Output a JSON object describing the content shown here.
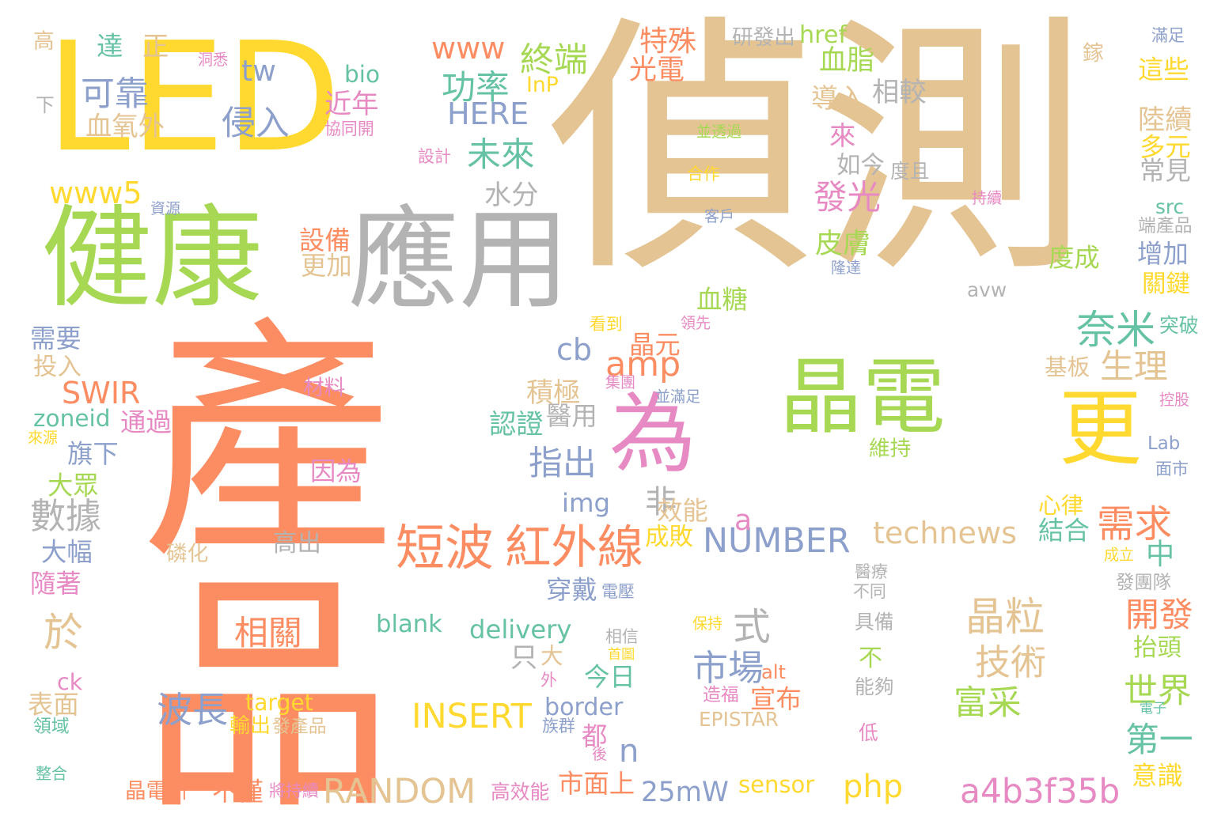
{
  "palette": {
    "orange": "#fc8d62",
    "tan": "#e5c494",
    "green": "#a6d854",
    "yellow": "#ffd92f",
    "gray": "#b3b3b3",
    "pink": "#e78ac3",
    "blue": "#8da0cb",
    "teal": "#66c2a5"
  },
  "words": [
    {
      "text": "產品",
      "color": "orange"
    },
    {
      "text": "偵測",
      "color": "tan"
    },
    {
      "text": "LED",
      "color": "yellow"
    },
    {
      "text": "健康",
      "color": "green"
    },
    {
      "text": "應用",
      "color": "gray"
    },
    {
      "text": "晶電",
      "color": "green"
    },
    {
      "text": "為",
      "color": "pink"
    },
    {
      "text": "更",
      "color": "yellow"
    },
    {
      "text": "短波",
      "color": "orange"
    },
    {
      "text": "紅外線",
      "color": "orange"
    },
    {
      "text": "技術",
      "color": "tan"
    },
    {
      "text": "晶粒",
      "color": "tan"
    },
    {
      "text": "需求",
      "color": "orange"
    },
    {
      "text": "奈米",
      "color": "teal"
    },
    {
      "text": "生理",
      "color": "tan"
    },
    {
      "text": "市場",
      "color": "blue"
    },
    {
      "text": "式",
      "color": "gray"
    },
    {
      "text": "相關",
      "color": "orange"
    },
    {
      "text": "波長",
      "color": "blue"
    },
    {
      "text": "富采",
      "color": "green"
    },
    {
      "text": "世界",
      "color": "green"
    },
    {
      "text": "開發",
      "color": "orange"
    },
    {
      "text": "第一",
      "color": "teal"
    },
    {
      "text": "INSERT",
      "color": "yellow"
    },
    {
      "text": "RANDOM",
      "color": "tan"
    },
    {
      "text": "NUMBER",
      "color": "blue"
    },
    {
      "text": "technews",
      "color": "tan"
    },
    {
      "text": "a4b3f35b",
      "color": "pink"
    },
    {
      "text": "delivery",
      "color": "teal"
    },
    {
      "text": "數據",
      "color": "gray"
    },
    {
      "text": "於",
      "color": "tan"
    },
    {
      "text": "指出",
      "color": "blue"
    },
    {
      "text": "amp",
      "color": "orange"
    },
    {
      "text": "功率",
      "color": "teal"
    },
    {
      "text": "未來",
      "color": "teal"
    },
    {
      "text": "終端",
      "color": "green"
    },
    {
      "text": "www",
      "color": "orange"
    },
    {
      "text": "HERE",
      "color": "blue"
    },
    {
      "text": "可靠",
      "color": "blue"
    },
    {
      "text": "侵入",
      "color": "blue"
    },
    {
      "text": "血氧外",
      "color": "tan"
    },
    {
      "text": "tw",
      "color": "blue"
    },
    {
      "text": "www5",
      "color": "yellow"
    },
    {
      "text": "SWIR",
      "color": "orange"
    },
    {
      "text": "zoneid",
      "color": "teal"
    },
    {
      "text": "cb",
      "color": "blue"
    },
    {
      "text": "php",
      "color": "yellow"
    },
    {
      "text": "border",
      "color": "blue"
    },
    {
      "text": "sensor",
      "color": "yellow"
    },
    {
      "text": "25mW",
      "color": "blue"
    },
    {
      "text": "blank",
      "color": "teal"
    },
    {
      "text": "target",
      "color": "yellow"
    },
    {
      "text": "img",
      "color": "blue"
    },
    {
      "text": "n",
      "color": "blue"
    },
    {
      "text": "a",
      "color": "pink"
    },
    {
      "text": "非",
      "color": "gray"
    },
    {
      "text": "發光",
      "color": "pink"
    },
    {
      "text": "皮膚",
      "color": "green"
    },
    {
      "text": "血脂",
      "color": "green"
    },
    {
      "text": "光電",
      "color": "orange"
    },
    {
      "text": "特殊",
      "color": "orange"
    },
    {
      "text": "研發出",
      "color": "gray"
    },
    {
      "text": "href",
      "color": "green"
    },
    {
      "text": "bio",
      "color": "teal"
    },
    {
      "text": "InP",
      "color": "yellow"
    },
    {
      "text": "近年",
      "color": "pink"
    },
    {
      "text": "達",
      "color": "teal"
    },
    {
      "text": "正",
      "color": "tan"
    },
    {
      "text": "高",
      "color": "tan"
    },
    {
      "text": "下",
      "color": "gray"
    },
    {
      "text": "洞悉",
      "color": "pink"
    },
    {
      "text": "協同開",
      "color": "pink"
    },
    {
      "text": "設計",
      "color": "pink"
    },
    {
      "text": "並透過",
      "color": "green"
    },
    {
      "text": "合作",
      "color": "yellow"
    },
    {
      "text": "客戶",
      "color": "blue"
    },
    {
      "text": "持續",
      "color": "pink"
    },
    {
      "text": "導入",
      "color": "tan"
    },
    {
      "text": "相較",
      "color": "gray"
    },
    {
      "text": "來",
      "color": "pink"
    },
    {
      "text": "如今",
      "color": "gray"
    },
    {
      "text": "度且",
      "color": "gray"
    },
    {
      "text": "水分",
      "color": "gray"
    },
    {
      "text": "設備",
      "color": "orange"
    },
    {
      "text": "更加",
      "color": "tan"
    },
    {
      "text": "資源",
      "color": "blue"
    },
    {
      "text": "血糖",
      "color": "green"
    },
    {
      "text": "晶元",
      "color": "orange"
    },
    {
      "text": "看到",
      "color": "yellow"
    },
    {
      "text": "領先",
      "color": "pink"
    },
    {
      "text": "積極",
      "color": "tan"
    },
    {
      "text": "醫用",
      "color": "gray"
    },
    {
      "text": "認證",
      "color": "teal"
    },
    {
      "text": "集團",
      "color": "pink"
    },
    {
      "text": "並滿足",
      "color": "blue"
    },
    {
      "text": "維持",
      "color": "green"
    },
    {
      "text": "因為",
      "color": "pink"
    },
    {
      "text": "材料",
      "color": "pink"
    },
    {
      "text": "通過",
      "color": "pink"
    },
    {
      "text": "旗下",
      "color": "blue"
    },
    {
      "text": "大眾",
      "color": "green"
    },
    {
      "text": "大幅",
      "color": "blue"
    },
    {
      "text": "隨著",
      "color": "pink"
    },
    {
      "text": "需要",
      "color": "blue"
    },
    {
      "text": "投入",
      "color": "tan"
    },
    {
      "text": "來源",
      "color": "yellow"
    },
    {
      "text": "磷化",
      "color": "tan"
    },
    {
      "text": "高出",
      "color": "gray"
    },
    {
      "text": "效能",
      "color": "tan"
    },
    {
      "text": "成敗",
      "color": "yellow"
    },
    {
      "text": "穿戴",
      "color": "blue"
    },
    {
      "text": "電壓",
      "color": "blue"
    },
    {
      "text": "相信",
      "color": "gray"
    },
    {
      "text": "首圖",
      "color": "yellow"
    },
    {
      "text": "只",
      "color": "gray"
    },
    {
      "text": "大",
      "color": "tan"
    },
    {
      "text": "外",
      "color": "pink"
    },
    {
      "text": "今日",
      "color": "teal"
    },
    {
      "text": "alt",
      "color": "orange"
    },
    {
      "text": "宣布",
      "color": "orange"
    },
    {
      "text": "保持",
      "color": "yellow"
    },
    {
      "text": "造福",
      "color": "pink"
    },
    {
      "text": "EPISTAR",
      "color": "tan"
    },
    {
      "text": "族群",
      "color": "blue"
    },
    {
      "text": "都",
      "color": "pink"
    },
    {
      "text": "後",
      "color": "pink"
    },
    {
      "text": "市面上",
      "color": "orange"
    },
    {
      "text": "高效能",
      "color": "pink"
    },
    {
      "text": "將持續",
      "color": "pink"
    },
    {
      "text": "不僅",
      "color": "orange"
    },
    {
      "text": "晶電研",
      "color": "orange"
    },
    {
      "text": "輸出",
      "color": "yellow"
    },
    {
      "text": "發產品",
      "color": "tan"
    },
    {
      "text": "表面",
      "color": "tan"
    },
    {
      "text": "領域",
      "color": "teal"
    },
    {
      "text": "ck",
      "color": "pink"
    },
    {
      "text": "整合",
      "color": "teal"
    },
    {
      "text": "醫療",
      "color": "gray"
    },
    {
      "text": "不同",
      "color": "gray"
    },
    {
      "text": "具備",
      "color": "gray"
    },
    {
      "text": "不",
      "color": "green"
    },
    {
      "text": "能夠",
      "color": "gray"
    },
    {
      "text": "低",
      "color": "pink"
    },
    {
      "text": "電子",
      "color": "teal"
    },
    {
      "text": "心律",
      "color": "yellow"
    },
    {
      "text": "結合",
      "color": "teal"
    },
    {
      "text": "中",
      "color": "teal"
    },
    {
      "text": "成立",
      "color": "yellow"
    },
    {
      "text": "發團隊",
      "color": "gray"
    },
    {
      "text": "抬頭",
      "color": "green"
    },
    {
      "text": "意識",
      "color": "yellow"
    },
    {
      "text": "avw",
      "color": "gray"
    },
    {
      "text": "度成",
      "color": "green"
    },
    {
      "text": "隆達",
      "color": "blue"
    },
    {
      "text": "基板",
      "color": "tan"
    },
    {
      "text": "突破",
      "color": "teal"
    },
    {
      "text": "控股",
      "color": "pink"
    },
    {
      "text": "Lab",
      "color": "blue"
    },
    {
      "text": "面市",
      "color": "blue"
    },
    {
      "text": "滿足",
      "color": "blue"
    },
    {
      "text": "這些",
      "color": "yellow"
    },
    {
      "text": "陸續",
      "color": "tan"
    },
    {
      "text": "多元",
      "color": "yellow"
    },
    {
      "text": "常見",
      "color": "gray"
    },
    {
      "text": "src",
      "color": "teal"
    },
    {
      "text": "端產品",
      "color": "gray"
    },
    {
      "text": "增加",
      "color": "blue"
    },
    {
      "text": "關鍵",
      "color": "yellow"
    },
    {
      "text": "鎵",
      "color": "tan"
    }
  ]
}
